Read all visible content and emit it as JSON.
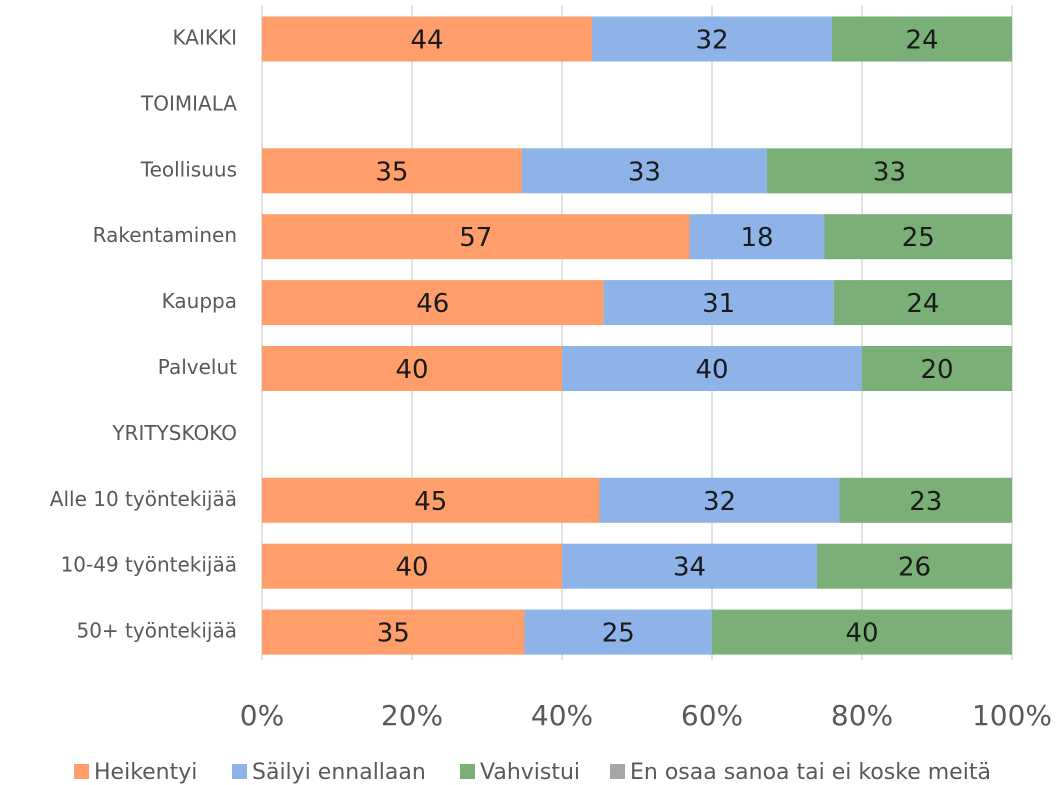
{
  "chart_data": {
    "type": "stacked-bar-100",
    "categories": [
      "KAIKKI",
      "TOIMIALA",
      "Teollisuus",
      "Rakentaminen",
      "Kauppa",
      "Palvelut",
      "YRITYSKOKO",
      "Alle 10 työntekijää",
      "10-49 työntekijää",
      "50+ työntekijää"
    ],
    "series": [
      {
        "name": "Heikentyi",
        "color": "#FF9E6A",
        "values": [
          44,
          null,
          35,
          57,
          46,
          40,
          null,
          45,
          40,
          35
        ]
      },
      {
        "name": "Säilyi ennallaan",
        "color": "#8DB3E8",
        "values": [
          32,
          null,
          33,
          18,
          31,
          40,
          null,
          32,
          34,
          25
        ]
      },
      {
        "name": "Vahvistui",
        "color": "#7AAF77",
        "values": [
          24,
          null,
          33,
          25,
          24,
          20,
          null,
          23,
          26,
          40
        ]
      },
      {
        "name": "En osaa sanoa tai ei koske meitä",
        "color": "#A5A5A5",
        "values": [
          0,
          null,
          0,
          0,
          0,
          0,
          null,
          0,
          0,
          0
        ]
      }
    ],
    "xlim": [
      0,
      100
    ],
    "xticks": [
      {
        "value": 0,
        "label": "0%"
      },
      {
        "value": 20,
        "label": "20%"
      },
      {
        "value": 40,
        "label": "40%"
      },
      {
        "value": 60,
        "label": "60%"
      },
      {
        "value": 80,
        "label": "80%"
      },
      {
        "value": 100,
        "label": "100%"
      }
    ],
    "grid": true,
    "legend": "bottom"
  }
}
